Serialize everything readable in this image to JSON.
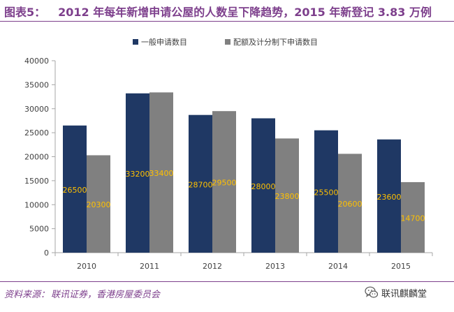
{
  "figure": {
    "number": "图表5：",
    "title": "2012 年每年新增申请公屋的人数呈下降趋势，2015 年新登记 3.83 万例"
  },
  "source": {
    "label": "资料来源：",
    "text": "联讯证券，香港房屋委员会"
  },
  "brand": {
    "name": "联讯麒麟堂",
    "icon": "wechat-icon"
  },
  "colors": {
    "accent": "#7d3f8c",
    "series1": "#1f3864",
    "series2": "#808080",
    "label": "#ffc000",
    "axis": "#a6a6a6"
  },
  "chart_data": {
    "type": "bar",
    "title": "",
    "xlabel": "",
    "ylabel": "",
    "categories": [
      "2010",
      "2011",
      "2012",
      "2013",
      "2014",
      "2015"
    ],
    "series": [
      {
        "name": "一般申请数目",
        "values": [
          26500,
          33200,
          28700,
          28000,
          25500,
          23600
        ]
      },
      {
        "name": "配额及计分制下申请数目",
        "values": [
          20300,
          33400,
          29500,
          23800,
          20600,
          14700
        ]
      }
    ],
    "ylim": [
      0,
      40000
    ],
    "yticks": [
      0,
      5000,
      10000,
      15000,
      20000,
      25000,
      30000,
      35000,
      40000
    ],
    "grid": false,
    "legend": "top"
  }
}
